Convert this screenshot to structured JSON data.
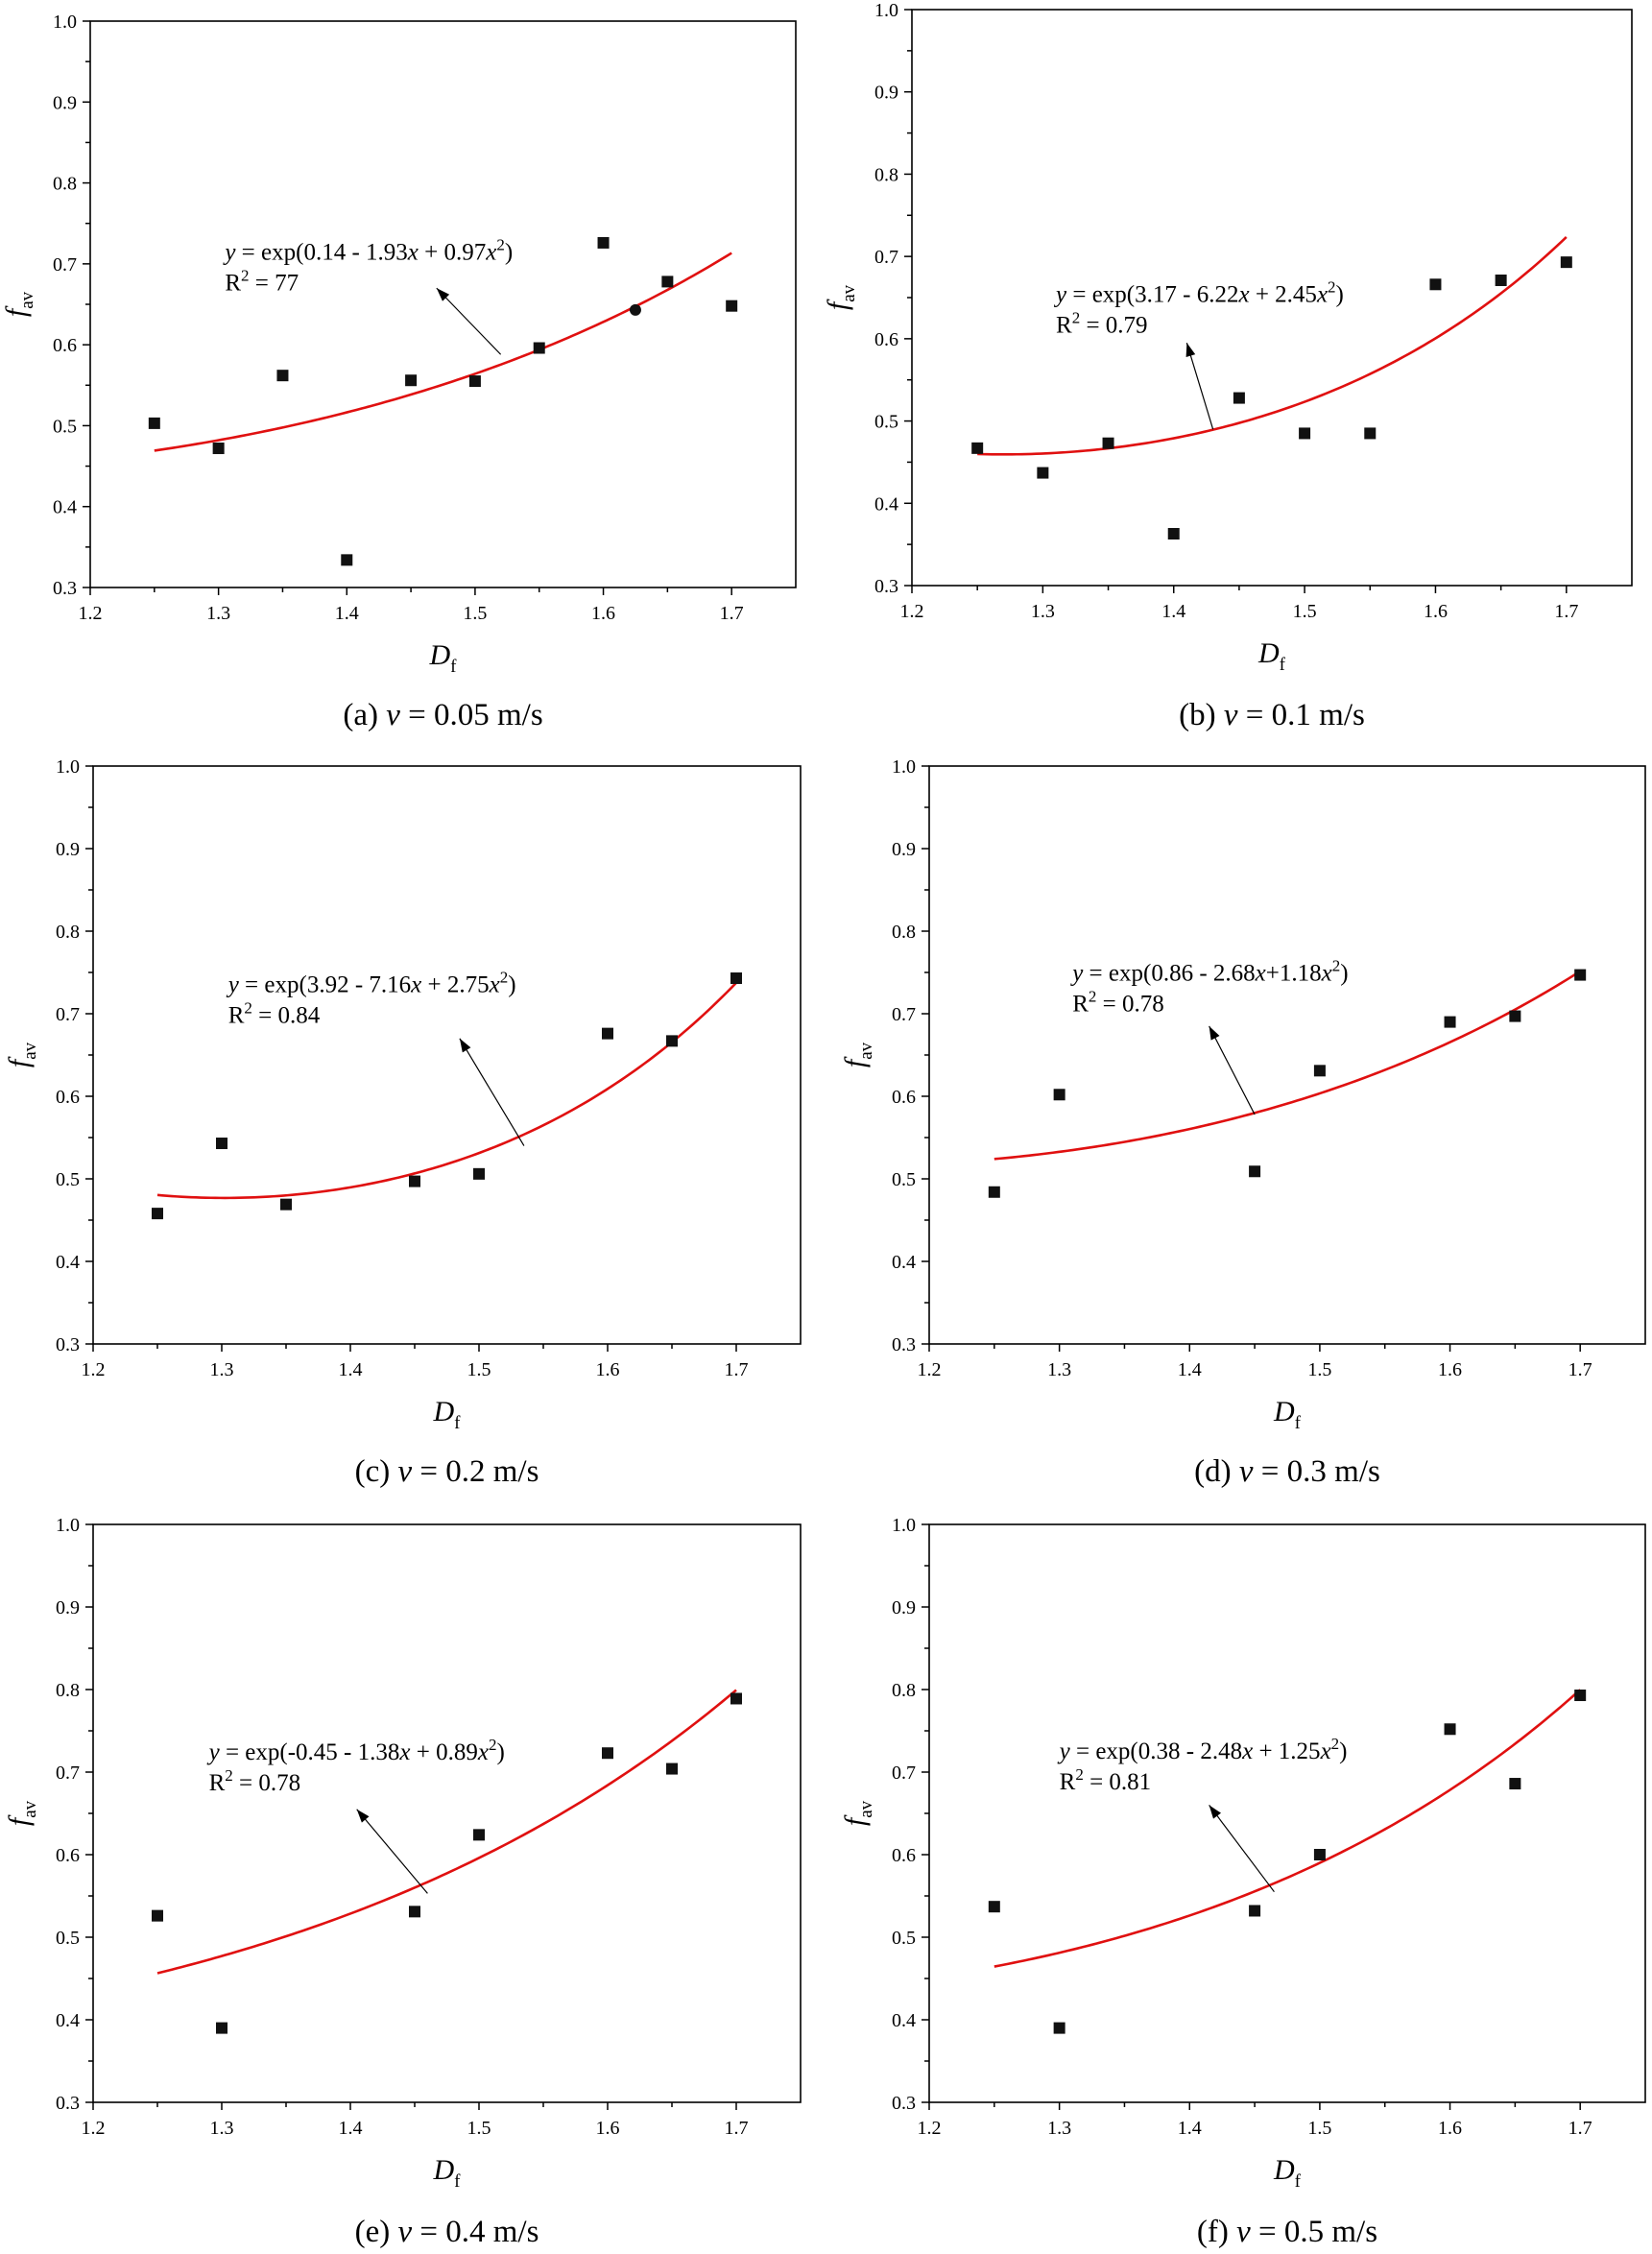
{
  "chart_data": [
    {
      "type": "scatter",
      "caption": "(a) v = 0.05 m/s",
      "caption_prefix": "(a) ",
      "caption_var": "v",
      "caption_suffix": " = 0.05 m/s",
      "xlabel_main": "D",
      "xlabel_sub": "f",
      "ylabel_main": "f",
      "ylabel_sub": "av",
      "xlim": [
        1.2,
        1.75
      ],
      "ylim": [
        0.3,
        1.0
      ],
      "xticks": [
        "1.2",
        "1.3",
        "1.4",
        "1.5",
        "1.6",
        "1.7"
      ],
      "yticks": [
        "0.3",
        "0.4",
        "0.5",
        "0.6",
        "0.7",
        "0.8",
        "0.9",
        "1.0"
      ],
      "points": [
        [
          1.25,
          0.503
        ],
        [
          1.3,
          0.472
        ],
        [
          1.35,
          0.562
        ],
        [
          1.4,
          0.334
        ],
        [
          1.45,
          0.556
        ],
        [
          1.5,
          0.555
        ],
        [
          1.55,
          0.596
        ],
        [
          1.6,
          0.726
        ],
        [
          1.625,
          0.643
        ],
        [
          1.65,
          0.678
        ],
        [
          1.7,
          0.648
        ]
      ],
      "highlight_point": 8,
      "fit": {
        "a": 0.14,
        "b": -1.93,
        "c": 0.97,
        "x_range": [
          1.25,
          1.7
        ]
      },
      "equation_parts": [
        "y",
        " = exp(0.14 - 1.93",
        "x",
        " + 0.97",
        "x",
        "2",
        ")"
      ],
      "r2_label": "R",
      "r2_sup": "2",
      "r2_value": " = 77",
      "annotation": {
        "text_at": [
          1.305,
          0.705
        ],
        "arrow_from": [
          1.52,
          0.588
        ],
        "arrow_to": [
          1.47,
          0.67
        ]
      }
    },
    {
      "type": "scatter",
      "caption": "(b) v = 0.1 m/s",
      "caption_prefix": "(b) ",
      "caption_var": "v",
      "caption_suffix": " = 0.1 m/s",
      "xlabel_main": "D",
      "xlabel_sub": "f",
      "ylabel_main": "f",
      "ylabel_sub": "av",
      "xlim": [
        1.2,
        1.75
      ],
      "ylim": [
        0.3,
        1.0
      ],
      "xticks": [
        "1.2",
        "1.3",
        "1.4",
        "1.5",
        "1.6",
        "1.7"
      ],
      "yticks": [
        "0.3",
        "0.4",
        "0.5",
        "0.6",
        "0.7",
        "0.8",
        "0.9",
        "1.0"
      ],
      "points": [
        [
          1.25,
          0.467
        ],
        [
          1.3,
          0.437
        ],
        [
          1.35,
          0.473
        ],
        [
          1.4,
          0.363
        ],
        [
          1.45,
          0.528
        ],
        [
          1.5,
          0.485
        ],
        [
          1.55,
          0.485
        ],
        [
          1.6,
          0.666
        ],
        [
          1.65,
          0.671
        ],
        [
          1.7,
          0.693
        ]
      ],
      "highlight_point": -1,
      "fit": {
        "a": 3.17,
        "b": -6.22,
        "c": 2.45,
        "x_range": [
          1.25,
          1.7
        ]
      },
      "equation_parts": [
        "y",
        " = exp(3.17 - 6.22",
        "x",
        " + 2.45",
        "x",
        "2",
        ")"
      ],
      "r2_label": "R",
      "r2_sup": "2",
      "r2_value": " = 0.79",
      "annotation": {
        "text_at": [
          1.31,
          0.645
        ],
        "arrow_from": [
          1.43,
          0.49
        ],
        "arrow_to": [
          1.41,
          0.595
        ]
      }
    },
    {
      "type": "scatter",
      "caption": "(c) v = 0.2 m/s",
      "caption_prefix": "(c) ",
      "caption_var": "v",
      "caption_suffix": " = 0.2 m/s",
      "xlabel_main": "D",
      "xlabel_sub": "f",
      "ylabel_main": "f",
      "ylabel_sub": "av",
      "xlim": [
        1.2,
        1.75
      ],
      "ylim": [
        0.3,
        1.0
      ],
      "xticks": [
        "1.2",
        "1.3",
        "1.4",
        "1.5",
        "1.6",
        "1.7"
      ],
      "yticks": [
        "0.3",
        "0.4",
        "0.5",
        "0.6",
        "0.7",
        "0.8",
        "0.9",
        "1.0"
      ],
      "points": [
        [
          1.25,
          0.458
        ],
        [
          1.3,
          0.543
        ],
        [
          1.35,
          0.469
        ],
        [
          1.45,
          0.497
        ],
        [
          1.5,
          0.506
        ],
        [
          1.6,
          0.676
        ],
        [
          1.65,
          0.667
        ],
        [
          1.7,
          0.743
        ]
      ],
      "highlight_point": -1,
      "fit": {
        "a": 3.92,
        "b": -7.16,
        "c": 2.75,
        "x_range": [
          1.25,
          1.7
        ]
      },
      "equation_parts": [
        "y",
        " = exp(3.92 - 7.16",
        "x",
        " + 2.75",
        "x",
        "2",
        ")"
      ],
      "r2_label": "R",
      "r2_sup": "2",
      "r2_value": " = 0.84",
      "annotation": {
        "text_at": [
          1.305,
          0.726
        ],
        "arrow_from": [
          1.535,
          0.54
        ],
        "arrow_to": [
          1.485,
          0.67
        ]
      }
    },
    {
      "type": "scatter",
      "caption": "(d) v = 0.3 m/s",
      "caption_prefix": "(d) ",
      "caption_var": "v",
      "caption_suffix": " = 0.3 m/s",
      "xlabel_main": "D",
      "xlabel_sub": "f",
      "ylabel_main": "f",
      "ylabel_sub": "av",
      "xlim": [
        1.2,
        1.75
      ],
      "ylim": [
        0.3,
        1.0
      ],
      "xticks": [
        "1.2",
        "1.3",
        "1.4",
        "1.5",
        "1.6",
        "1.7"
      ],
      "yticks": [
        "0.3",
        "0.4",
        "0.5",
        "0.6",
        "0.7",
        "0.8",
        "0.9",
        "1.0"
      ],
      "points": [
        [
          1.25,
          0.484
        ],
        [
          1.3,
          0.602
        ],
        [
          1.45,
          0.509
        ],
        [
          1.5,
          0.631
        ],
        [
          1.6,
          0.69
        ],
        [
          1.65,
          0.697
        ],
        [
          1.7,
          0.747
        ]
      ],
      "highlight_point": -1,
      "fit": {
        "a": 0.86,
        "b": -2.68,
        "c": 1.18,
        "x_range": [
          1.25,
          1.7
        ]
      },
      "equation_parts": [
        "y",
        " = exp(0.86 - 2.68",
        "x",
        "+1.18",
        "x",
        "2",
        ")"
      ],
      "r2_label": "R",
      "r2_sup": "2",
      "r2_value": " = 0.78",
      "annotation": {
        "text_at": [
          1.31,
          0.74
        ],
        "arrow_from": [
          1.45,
          0.578
        ],
        "arrow_to": [
          1.415,
          0.685
        ]
      }
    },
    {
      "type": "scatter",
      "caption": "(e) v = 0.4 m/s",
      "caption_prefix": "(e) ",
      "caption_var": "v",
      "caption_suffix": " = 0.4 m/s",
      "xlabel_main": "D",
      "xlabel_sub": "f",
      "ylabel_main": "f",
      "ylabel_sub": "av",
      "xlim": [
        1.2,
        1.75
      ],
      "ylim": [
        0.3,
        1.0
      ],
      "xticks": [
        "1.2",
        "1.3",
        "1.4",
        "1.5",
        "1.6",
        "1.7"
      ],
      "yticks": [
        "0.3",
        "0.4",
        "0.5",
        "0.6",
        "0.7",
        "0.8",
        "0.9",
        "1.0"
      ],
      "points": [
        [
          1.25,
          0.526
        ],
        [
          1.3,
          0.39
        ],
        [
          1.45,
          0.531
        ],
        [
          1.5,
          0.624
        ],
        [
          1.6,
          0.723
        ],
        [
          1.65,
          0.704
        ],
        [
          1.7,
          0.789
        ]
      ],
      "highlight_point": -1,
      "fit": {
        "a": -0.45,
        "b": -1.38,
        "c": 0.89,
        "x_range": [
          1.25,
          1.7
        ]
      },
      "equation_parts": [
        "y",
        " = exp(-0.45 - 1.38",
        "x",
        " + 0.89",
        "x",
        "2",
        ")"
      ],
      "r2_label": "R",
      "r2_sup": "2",
      "r2_value": " = 0.78",
      "annotation": {
        "text_at": [
          1.29,
          0.715
        ],
        "arrow_from": [
          1.46,
          0.553
        ],
        "arrow_to": [
          1.405,
          0.655
        ]
      }
    },
    {
      "type": "scatter",
      "caption": "(f) v = 0.5 m/s",
      "caption_prefix": "(f) ",
      "caption_var": "v",
      "caption_suffix": " = 0.5 m/s",
      "xlabel_main": "D",
      "xlabel_sub": "f",
      "ylabel_main": "f",
      "ylabel_sub": "av",
      "xlim": [
        1.2,
        1.75
      ],
      "ylim": [
        0.3,
        1.0
      ],
      "xticks": [
        "1.2",
        "1.3",
        "1.4",
        "1.5",
        "1.6",
        "1.7"
      ],
      "yticks": [
        "0.3",
        "0.4",
        "0.5",
        "0.6",
        "0.7",
        "0.8",
        "0.9",
        "1.0"
      ],
      "points": [
        [
          1.25,
          0.537
        ],
        [
          1.3,
          0.39
        ],
        [
          1.45,
          0.532
        ],
        [
          1.5,
          0.6
        ],
        [
          1.6,
          0.752
        ],
        [
          1.65,
          0.686
        ],
        [
          1.7,
          0.793
        ]
      ],
      "highlight_point": -1,
      "fit": {
        "a": 0.38,
        "b": -2.48,
        "c": 1.25,
        "x_range": [
          1.25,
          1.7
        ]
      },
      "equation_parts": [
        "y",
        " = exp(0.38 - 2.48",
        "x",
        " + 1.25",
        "x",
        "2",
        ")"
      ],
      "r2_label": "R",
      "r2_sup": "2",
      "r2_value": " = 0.81",
      "annotation": {
        "text_at": [
          1.3,
          0.716
        ],
        "arrow_from": [
          1.465,
          0.555
        ],
        "arrow_to": [
          1.415,
          0.66
        ]
      }
    }
  ]
}
